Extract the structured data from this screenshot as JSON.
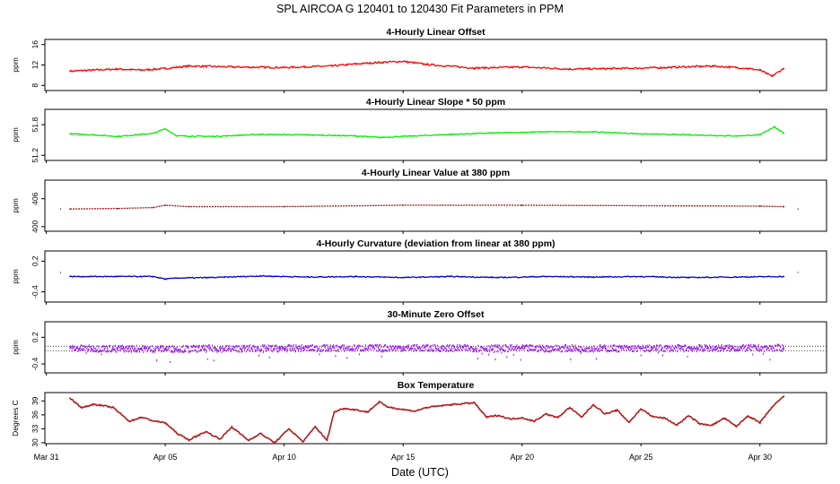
{
  "title": "SPL   AIRCOA G   120401 to 120430   Fit Parameters in PPM",
  "xlabel": "Date (UTC)",
  "x_ticks": [
    "Mar 31",
    "Apr 05",
    "Apr 10",
    "Apr 15",
    "Apr 20",
    "Apr 25",
    "Apr 30"
  ],
  "chart_data": [
    {
      "type": "line",
      "title": "4-Hourly Linear Offset",
      "ylabel": "ppm",
      "yticks": [
        "8",
        "12",
        "16"
      ],
      "ylim": [
        7,
        17
      ],
      "color": "#ff0000",
      "x": [
        1.0,
        2.0,
        3.0,
        4.0,
        5.0,
        6.0,
        8.0,
        10.0,
        12.0,
        13.0,
        14.0,
        15.0,
        16.0,
        18.0,
        20.0,
        22.0,
        24.0,
        26.0,
        28.0,
        29.0,
        29.5,
        30.0,
        30.5,
        31.0
      ],
      "y": [
        10.8,
        11.0,
        11.2,
        11.0,
        11.3,
        11.8,
        11.6,
        11.5,
        11.8,
        12.2,
        12.5,
        12.7,
        12.1,
        11.4,
        11.6,
        11.2,
        11.3,
        11.5,
        11.8,
        11.5,
        11.3,
        11.0,
        9.8,
        11.3
      ]
    },
    {
      "type": "line",
      "title": "4-Hourly Linear Slope * 50 ppm",
      "ylabel": "ppm",
      "yticks": [
        "51.2",
        "51.8"
      ],
      "ylim": [
        51.1,
        52.1
      ],
      "color": "#00ee00",
      "x": [
        1.0,
        2.0,
        3.0,
        4.0,
        4.5,
        5.0,
        5.5,
        7.0,
        9.0,
        11.0,
        13.0,
        14.0,
        15.0,
        17.0,
        19.0,
        21.0,
        23.0,
        25.0,
        27.0,
        29.0,
        30.0,
        30.6,
        31.0
      ],
      "y": [
        51.62,
        51.6,
        51.57,
        51.61,
        51.63,
        51.72,
        51.58,
        51.57,
        51.61,
        51.6,
        51.58,
        51.55,
        51.57,
        51.61,
        51.64,
        51.66,
        51.66,
        51.62,
        51.6,
        51.58,
        51.6,
        51.76,
        51.63
      ]
    },
    {
      "type": "line",
      "title": "4-Hourly Linear Value at 380 ppm",
      "ylabel": "ppm",
      "yticks": [
        "400",
        "406"
      ],
      "ylim": [
        399,
        410
      ],
      "color": "#9b1b1b",
      "x": [
        1.0,
        3.0,
        4.5,
        5.0,
        6.0,
        10.0,
        15.0,
        20.0,
        25.0,
        30.0,
        31.0
      ],
      "y": [
        403.8,
        403.9,
        404.1,
        404.6,
        404.3,
        404.3,
        404.6,
        404.6,
        404.5,
        404.4,
        404.3
      ]
    },
    {
      "type": "line",
      "title": "4-Hourly Curvature (deviation from linear at 380 ppm)",
      "ylabel": "ppm",
      "yticks": [
        "-0.4",
        "0.2"
      ],
      "ylim": [
        -0.6,
        0.4
      ],
      "color": "#0000cc",
      "x": [
        1.0,
        3.0,
        4.5,
        5.0,
        5.5,
        7.0,
        9.0,
        11.0,
        13.0,
        15.0,
        17.0,
        19.0,
        21.0,
        23.0,
        25.0,
        27.0,
        29.0,
        31.0
      ],
      "y": [
        -0.1,
        -0.1,
        -0.1,
        -0.15,
        -0.13,
        -0.12,
        -0.09,
        -0.11,
        -0.1,
        -0.12,
        -0.1,
        -0.12,
        -0.1,
        -0.11,
        -0.1,
        -0.12,
        -0.11,
        -0.1
      ]
    },
    {
      "type": "scatter",
      "title": "30-Minute Zero Offset",
      "ylabel": "ppm",
      "yticks": [
        "-0.4",
        "0.2"
      ],
      "ylim": [
        -0.6,
        0.55
      ],
      "color": "#a020f0",
      "reference_lines": [
        0.0,
        -0.1
      ],
      "x": [
        1.0,
        5.0,
        10.0,
        15.0,
        20.0,
        25.0,
        31.0
      ],
      "y": [
        -0.05,
        -0.06,
        -0.05,
        -0.04,
        -0.05,
        -0.05,
        -0.04
      ]
    },
    {
      "type": "line",
      "title": "Box Temperature",
      "ylabel": "Degrees C",
      "yticks": [
        "30",
        "33",
        "36",
        "39"
      ],
      "ylim": [
        29.8,
        40.8
      ],
      "color": "#b21a1a",
      "x": [
        1.0,
        1.5,
        2.0,
        2.8,
        3.5,
        4.0,
        4.5,
        5.0,
        5.5,
        6.0,
        6.7,
        7.3,
        7.8,
        8.5,
        9.0,
        9.6,
        10.2,
        10.8,
        11.3,
        11.8,
        12.1,
        12.5,
        13.0,
        13.5,
        14.0,
        14.3,
        14.8,
        15.5,
        16.0,
        17.0,
        18.0,
        18.5,
        19.0,
        19.5,
        20.0,
        20.5,
        21.0,
        21.5,
        22.0,
        22.5,
        23.0,
        23.5,
        24.0,
        24.5,
        25.0,
        25.5,
        26.0,
        26.5,
        27.0,
        27.5,
        28.0,
        28.5,
        29.0,
        29.5,
        30.0,
        30.5,
        31.0
      ],
      "y": [
        39.6,
        37.5,
        38.3,
        37.6,
        34.6,
        35.5,
        34.7,
        34.3,
        32.0,
        30.6,
        32.4,
        30.8,
        33.4,
        30.5,
        32.0,
        30.0,
        33.0,
        30.2,
        33.5,
        30.5,
        36.6,
        37.4,
        37.1,
        36.6,
        38.8,
        37.8,
        37.3,
        36.8,
        37.6,
        38.2,
        38.6,
        35.5,
        35.9,
        35.1,
        35.4,
        34.6,
        36.2,
        35.4,
        37.6,
        35.5,
        38.2,
        36.2,
        37.0,
        34.4,
        37.3,
        35.6,
        35.3,
        33.8,
        35.8,
        34.0,
        33.8,
        35.3,
        33.5,
        35.8,
        34.3,
        37.6,
        40.0
      ]
    }
  ]
}
